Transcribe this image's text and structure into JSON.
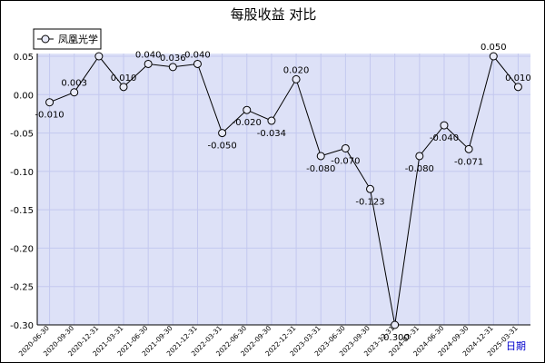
{
  "chart_data": {
    "type": "line",
    "title": "每股收益  对比",
    "xlabel": "日期",
    "ylabel": "",
    "ylim": [
      -0.3,
      0.05
    ],
    "yticks": [
      "0.05",
      "0.00",
      "-0.05",
      "-0.10",
      "-0.15",
      "-0.20",
      "-0.25",
      "-0.30"
    ],
    "grid": true,
    "legend_position": "top-left",
    "categories": [
      "2020-06-30",
      "2020-09-30",
      "2020-12-31",
      "2021-03-31",
      "2021-06-30",
      "2021-09-30",
      "2021-12-31",
      "2022-03-31",
      "2022-06-30",
      "2022-09-30",
      "2022-12-31",
      "2023-03-31",
      "2023-06-30",
      "2023-09-30",
      "2023-12-31",
      "2024-03-31",
      "2024-06-30",
      "2024-09-30",
      "2024-12-31",
      "2025-03-31"
    ],
    "series": [
      {
        "name": "凤凰光学",
        "values": [
          -0.01,
          0.003,
          0.05,
          0.01,
          0.04,
          0.036,
          0.04,
          -0.05,
          -0.02,
          -0.034,
          0.02,
          -0.08,
          -0.07,
          -0.123,
          -0.3,
          -0.08,
          -0.04,
          -0.071,
          0.05,
          0.01
        ],
        "data_labels": [
          "-0.010",
          "0.003",
          "",
          "0.010",
          "0.040",
          "0.036",
          "0.040",
          "-0.050",
          "-0.020",
          "-0.034",
          "0.020",
          "-0.080",
          "-0.070",
          "-0.123",
          "-0.300",
          "-0.080",
          "-0.040",
          "-0.071",
          "0.050",
          "0.010"
        ]
      }
    ],
    "colors": {
      "plot_background": "#dde1f7",
      "grid": "#c3c8ef",
      "line": "#000000",
      "marker_fill": "#e8eaf8",
      "xlabel": "#0000cc"
    }
  }
}
